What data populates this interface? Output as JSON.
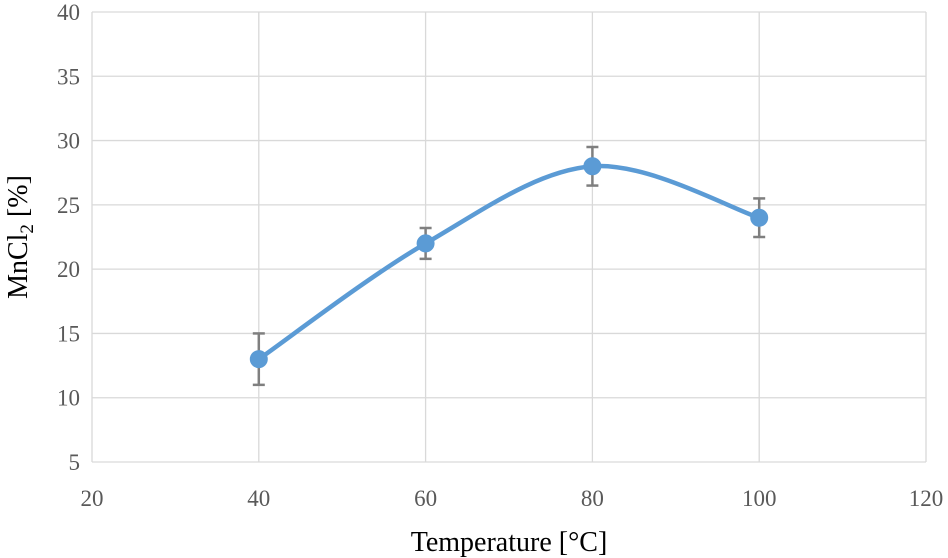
{
  "chart_data": {
    "type": "scatter",
    "title": "",
    "xlabel": "Temperature [°C]",
    "ylabel_main": "MnCl",
    "ylabel_subscript": "2",
    "ylabel_suffix": " [%]",
    "xlim": [
      20,
      120
    ],
    "ylim": [
      5,
      40
    ],
    "xticks": [
      20,
      40,
      60,
      80,
      100,
      120
    ],
    "yticks": [
      5,
      10,
      15,
      20,
      25,
      30,
      35,
      40
    ],
    "grid": true,
    "smooth_line": true,
    "series": [
      {
        "name": "MnCl2",
        "color": "#5b9bd5",
        "errorbar_color": "#7f7f7f",
        "points": [
          {
            "x": 40,
            "y": 13,
            "err_low": 2.0,
            "err_high": 2.0
          },
          {
            "x": 60,
            "y": 22,
            "err_low": 1.2,
            "err_high": 1.2
          },
          {
            "x": 80,
            "y": 28,
            "err_low": 1.5,
            "err_high": 1.5
          },
          {
            "x": 100,
            "y": 24,
            "err_low": 1.5,
            "err_high": 1.5
          }
        ]
      }
    ]
  }
}
